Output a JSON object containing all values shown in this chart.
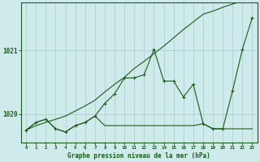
{
  "title": "Graphe pression niveau de la mer (hPa)",
  "background_color": "#ceeaea",
  "grid_color": "#aacccc",
  "line_color": "#1a5c1a",
  "xlim": [
    -0.5,
    23.5
  ],
  "ylim": [
    1019.55,
    1021.75
  ],
  "yticks": [
    1020,
    1021
  ],
  "xticks": [
    0,
    1,
    2,
    3,
    4,
    5,
    6,
    7,
    8,
    9,
    10,
    11,
    12,
    13,
    14,
    15,
    16,
    17,
    18,
    19,
    20,
    21,
    22,
    23
  ],
  "hours": [
    0,
    1,
    2,
    3,
    4,
    5,
    6,
    7,
    8,
    9,
    10,
    11,
    12,
    13,
    14,
    15,
    16,
    17,
    18,
    19,
    20,
    21,
    22,
    23
  ],
  "series_main": [
    1019.75,
    1019.87,
    1019.92,
    1019.77,
    1019.72,
    1019.82,
    1019.87,
    1019.97,
    1020.17,
    1020.32,
    1020.57,
    1020.57,
    1020.62,
    1021.02,
    1020.52,
    1020.52,
    1020.27,
    1020.47,
    1019.85,
    1019.77,
    1019.77,
    1020.37,
    1021.02,
    1021.52
  ],
  "series_flat": [
    1019.75,
    1019.87,
    1019.92,
    1019.77,
    1019.72,
    1019.82,
    1019.87,
    1019.97,
    1019.82,
    1019.82,
    1019.82,
    1019.82,
    1019.82,
    1019.82,
    1019.82,
    1019.82,
    1019.82,
    1019.82,
    1019.85,
    1019.77,
    1019.77,
    1019.77,
    1019.77,
    1019.77
  ],
  "series_trend": [
    1019.75,
    1019.82,
    1019.87,
    1019.92,
    1019.97,
    1020.05,
    1020.13,
    1020.22,
    1020.35,
    1020.47,
    1020.58,
    1020.72,
    1020.83,
    1020.95,
    1021.07,
    1021.2,
    1021.33,
    1021.45,
    1021.57,
    1021.62,
    1021.68,
    1021.73,
    1021.78,
    1021.85
  ]
}
